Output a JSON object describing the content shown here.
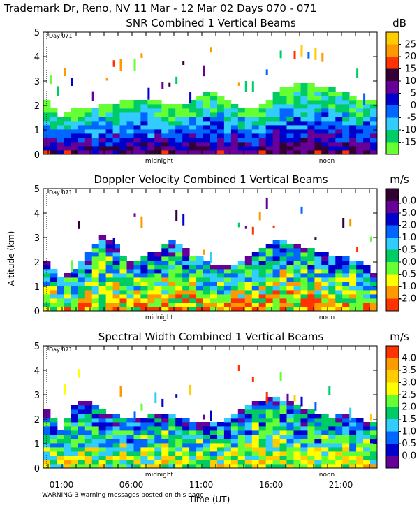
{
  "page_title": "Trademark Dr, Reno, NV  11 Mar - 12 Mar 02 Days 070 - 071",
  "y_axis_label": "Altitude (km)",
  "x_axis_label": "Time (UT)",
  "warning": "WARNING  3 warning messages posted on this page",
  "chart_data": [
    {
      "type": "heatmap",
      "title": "SNR Combined 1 Vertical Beams",
      "units": "dB",
      "ylim": [
        0,
        5
      ],
      "y_ticks": [
        "0",
        "1",
        "2",
        "3",
        "4",
        "5"
      ],
      "day_marker": "Day 071",
      "x_markers": [
        "midnight",
        "noon"
      ],
      "colorbar_labels": [
        "25",
        "20",
        "15",
        "10",
        "5",
        "0",
        "-5",
        "-10",
        "-15"
      ],
      "colorbar_colors": [
        "#ffcc00",
        "#ff9900",
        "#ff3300",
        "#330033",
        "#660099",
        "#0000cc",
        "#0066ff",
        "#33ccff",
        "#00cc66",
        "#66ff33"
      ],
      "echo_tops_km": [
        2.2,
        1.6,
        1.8,
        1.9,
        2.0,
        2.1,
        2.2,
        2.3,
        2.2,
        2.1,
        2.0,
        2.4,
        2.6,
        2.3,
        2.0,
        1.9,
        2.1,
        2.6,
        2.8,
        2.9,
        2.8,
        2.7,
        2.5,
        2.3,
        2.2
      ]
    },
    {
      "type": "heatmap",
      "title": "Doppler Velocity Combined 1 Vertical Beams",
      "units": "m/s",
      "ylim": [
        0,
        5
      ],
      "y_ticks": [
        "0",
        "1",
        "2",
        "3",
        "4",
        "5"
      ],
      "day_marker": "Day 071",
      "x_markers": [
        "midnight",
        "noon"
      ],
      "colorbar_labels": [
        "10.0",
        "5.0",
        "2.0",
        "1.0",
        "0.5",
        "0.0",
        "-0.5",
        "-1.0",
        "-2.0"
      ],
      "colorbar_colors": [
        "#330033",
        "#660099",
        "#0000cc",
        "#0066ff",
        "#33ccff",
        "#00cc66",
        "#66ff33",
        "#ffff00",
        "#ff9900",
        "#ff3300"
      ],
      "echo_tops_km": [
        2.0,
        1.4,
        1.6,
        2.3,
        3.2,
        2.8,
        2.0,
        2.2,
        2.4,
        2.9,
        2.6,
        2.2,
        2.0,
        1.8,
        1.9,
        2.3,
        2.7,
        2.9,
        2.8,
        2.6,
        2.4,
        2.3,
        2.2,
        2.0,
        1.6
      ]
    },
    {
      "type": "heatmap",
      "title": "Spectral Width Combined 1 Vertical Beams",
      "units": "m/s",
      "ylim": [
        0,
        5
      ],
      "y_ticks": [
        "0",
        "1",
        "2",
        "3",
        "4",
        "5"
      ],
      "day_marker": "Day 071",
      "x_markers": [
        "midnight",
        "noon"
      ],
      "colorbar_labels": [
        "4.0",
        "3.5",
        "3.0",
        "2.5",
        "2.0",
        "1.5",
        "1.0",
        "0.5",
        "0.0"
      ],
      "colorbar_colors": [
        "#ff3300",
        "#ff9900",
        "#ffcc00",
        "#ffff00",
        "#66ff33",
        "#00cc66",
        "#33ccff",
        "#0066ff",
        "#0000cc",
        "#660099"
      ],
      "echo_tops_km": [
        2.4,
        1.6,
        2.6,
        2.8,
        2.4,
        2.2,
        2.0,
        2.1,
        2.3,
        2.2,
        2.0,
        1.9,
        1.8,
        2.0,
        2.3,
        2.6,
        2.8,
        2.9,
        2.7,
        2.4,
        2.2,
        2.1,
        2.2,
        2.0,
        1.8
      ]
    }
  ],
  "x_tick_labels": [
    "01:00",
    "06:00",
    "11:00",
    "16:00",
    "21:00"
  ]
}
